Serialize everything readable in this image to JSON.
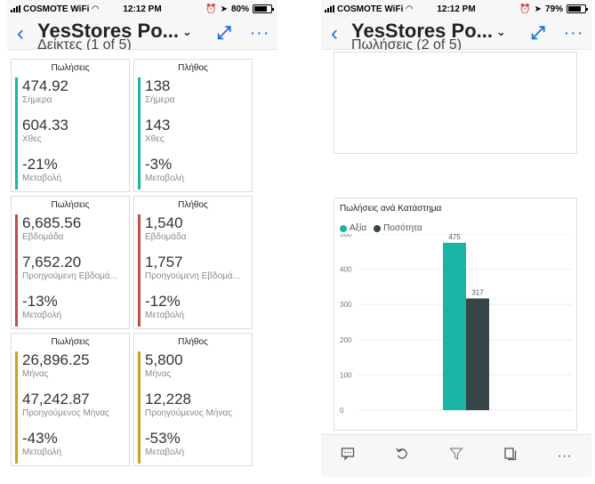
{
  "status": {
    "left": {
      "carrier": "COSMOTE WiFi",
      "time": "12:12 PM",
      "battery_text": "80%",
      "battery_level": 0.8
    },
    "right": {
      "carrier": "COSMOTE WiFi",
      "time": "12:12 PM",
      "battery_text": "79%",
      "battery_level": 0.79
    }
  },
  "left_screen": {
    "title": "YesStores Po...",
    "subtitle": "Δείκτες (1 of 5)",
    "cards": [
      {
        "title": "Πωλήσεις",
        "color": "#1ab5a5",
        "kpis": [
          {
            "value": "474.92",
            "label": "Σήμερα"
          },
          {
            "value": "604.33",
            "label": "Χθες"
          },
          {
            "value": "-21%",
            "label": "Μεταβολή"
          }
        ]
      },
      {
        "title": "Πλήθος",
        "color": "#1ab5a5",
        "kpis": [
          {
            "value": "138",
            "label": "Σήμερα"
          },
          {
            "value": "143",
            "label": "Χθες"
          },
          {
            "value": "-3%",
            "label": "Μεταβολή"
          }
        ]
      },
      {
        "title": "Πωλήσεις",
        "color": "#c0504d",
        "kpis": [
          {
            "value": "6,685.56",
            "label": "Εβδομάδα"
          },
          {
            "value": "7,652.20",
            "label": "Προηγούμενη Εβδομά..."
          },
          {
            "value": "-13%",
            "label": "Μεταβολή"
          }
        ]
      },
      {
        "title": "Πλήθος",
        "color": "#c0504d",
        "kpis": [
          {
            "value": "1,540",
            "label": "Εβδομάδα"
          },
          {
            "value": "1,757",
            "label": "Προηγούμενη Εβδομά..."
          },
          {
            "value": "-12%",
            "label": "Μεταβολή"
          }
        ]
      },
      {
        "title": "Πωλήσεις",
        "color": "#c9a227",
        "kpis": [
          {
            "value": "26,896.25",
            "label": "Μήνας"
          },
          {
            "value": "47,242.87",
            "label": "Προηγούμενος Μήνας"
          },
          {
            "value": "-43%",
            "label": "Μεταβολή"
          }
        ]
      },
      {
        "title": "Πλήθος",
        "color": "#c9a227",
        "kpis": [
          {
            "value": "5,800",
            "label": "Μήνας"
          },
          {
            "value": "12,228",
            "label": "Προηγούμενος Μήνας"
          },
          {
            "value": "-53%",
            "label": "Μεταβολή"
          }
        ]
      }
    ]
  },
  "right_screen": {
    "title": "YesStores Po...",
    "subtitle": "Πωλήσεις (2 of 5)",
    "chart_data": {
      "type": "bar",
      "title": "Πωλήσεις ανά Κατάστημα",
      "categories": [
        ""
      ],
      "series": [
        {
          "name": "Αξία",
          "color": "#1ab5a5",
          "values": [
            475
          ]
        },
        {
          "name": "Ποσότητα",
          "color": "#374649",
          "values": [
            317
          ]
        }
      ],
      "data_labels": [
        "475",
        "317"
      ],
      "ylim": [
        0,
        500
      ],
      "yticks": [
        "0",
        "100",
        "200",
        "300",
        "400",
        "500"
      ],
      "grid": true,
      "legend": "top-left"
    },
    "toolbar": [
      "comment-icon",
      "undo-icon",
      "filter-icon",
      "pages-icon",
      "more-icon"
    ]
  }
}
